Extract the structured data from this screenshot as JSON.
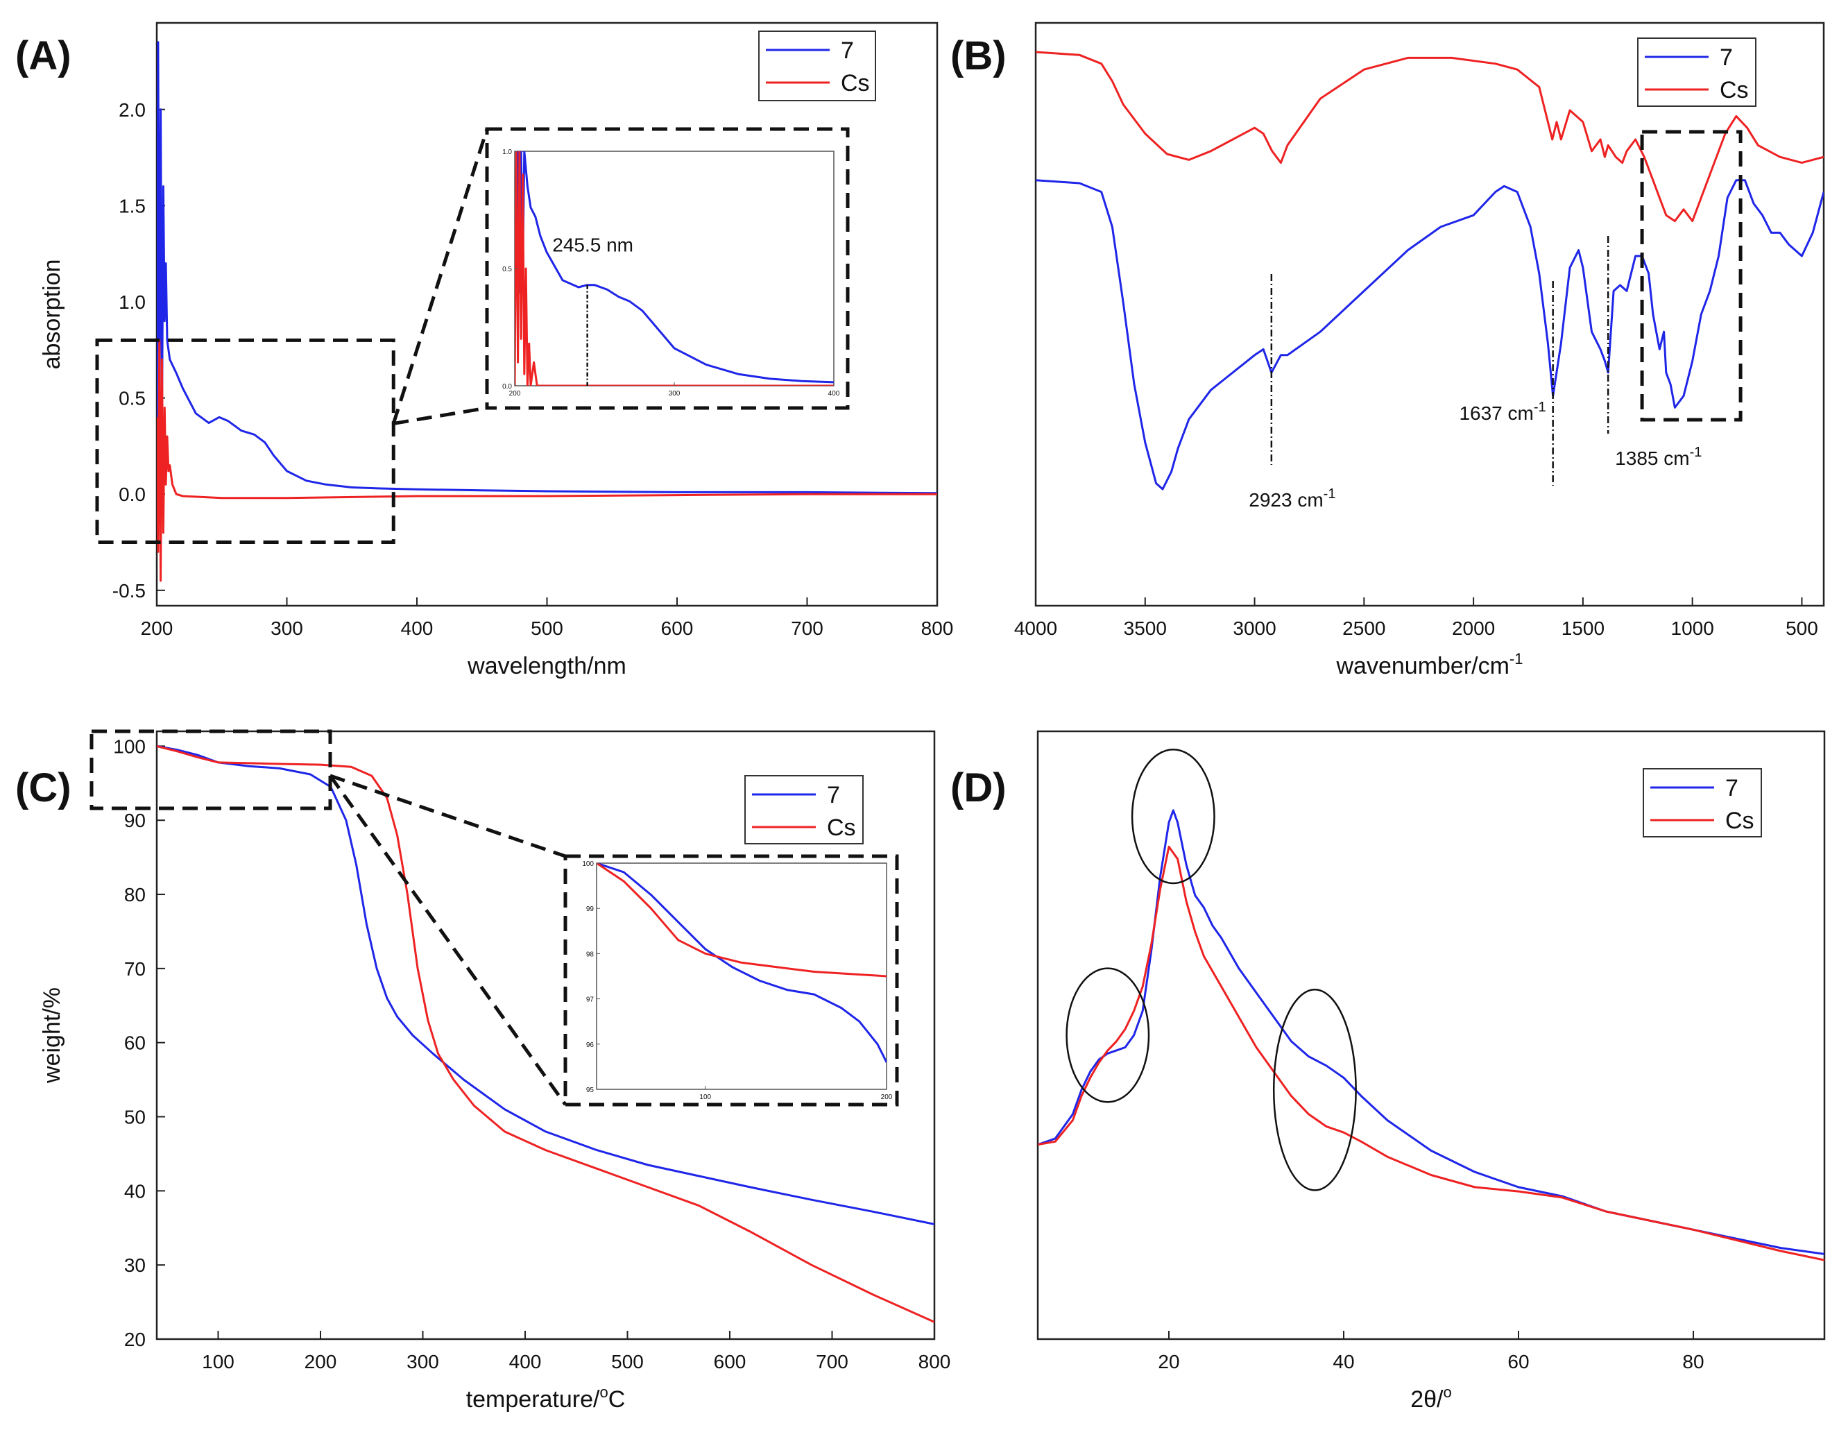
{
  "colors": {
    "blue": "#1f26e8",
    "red": "#ee2222"
  },
  "chart_data": [
    {
      "id": "A",
      "type": "line",
      "panel_label": "(A)",
      "xlabel": "wavelength/nm",
      "ylabel": "absorption",
      "xlim": [
        200,
        800
      ],
      "ylim": [
        -0.58,
        2.45
      ],
      "xticks": [
        200,
        300,
        400,
        500,
        600,
        700,
        800
      ],
      "xtick_labels": [
        "200",
        "300",
        "400",
        "500",
        "600",
        "700",
        "800"
      ],
      "yticks": [
        -0.5,
        0.0,
        0.5,
        1.0,
        1.5,
        2.0
      ],
      "ytick_labels": [
        "-0.5",
        "0.0",
        "0.5",
        "1.0",
        "1.5",
        "2.0"
      ],
      "legend": [
        "7",
        "Cs"
      ],
      "legend_position": "top-right",
      "series": [
        {
          "name": "7",
          "color": "blue",
          "x": [
            200,
            201,
            202,
            203,
            204,
            205,
            206,
            207,
            208,
            210,
            215,
            220,
            230,
            240,
            248,
            255,
            265,
            275,
            283,
            290,
            300,
            315,
            330,
            350,
            370,
            400,
            450,
            500,
            600,
            700,
            800
          ],
          "y": [
            0.2,
            2.35,
            0.6,
            2.0,
            0.4,
            1.6,
            0.9,
            1.2,
            0.8,
            0.7,
            0.63,
            0.55,
            0.42,
            0.37,
            0.4,
            0.38,
            0.33,
            0.31,
            0.27,
            0.2,
            0.12,
            0.07,
            0.05,
            0.035,
            0.03,
            0.025,
            0.02,
            0.015,
            0.01,
            0.01,
            0.005
          ]
        },
        {
          "name": "Cs",
          "color": "red",
          "x": [
            200,
            201,
            202,
            203,
            204,
            205,
            206,
            207,
            208,
            209,
            210,
            212,
            215,
            220,
            250,
            300,
            400,
            500,
            600,
            700,
            800
          ],
          "y": [
            0.4,
            -0.3,
            0.8,
            -0.45,
            0.7,
            -0.2,
            0.45,
            0.05,
            0.3,
            0.12,
            0.15,
            0.05,
            0.0,
            -0.01,
            -0.02,
            -0.02,
            -0.01,
            -0.01,
            -0.005,
            0.0,
            0.0
          ]
        }
      ],
      "zoom_box": {
        "x": [
          185,
          382
        ],
        "y": [
          -0.25,
          0.8
        ]
      },
      "inset": {
        "xlim": [
          200,
          400
        ],
        "ylim": [
          0,
          1.0
        ],
        "xtick_labels": [
          "200",
          "300",
          "400"
        ],
        "ytick_labels": [
          "0.0",
          "0.5",
          "1.0"
        ],
        "annotation": {
          "text": "245.5 nm",
          "x": 245.5
        },
        "series": [
          {
            "name": "7",
            "color": "blue",
            "x": [
              200,
              202,
              203,
              204,
              205,
              206,
              208,
              210,
              213,
              216,
              220,
              230,
              240,
              245.5,
              250,
              258,
              265,
              272,
              280,
              290,
              300,
              320,
              340,
              360,
              380,
              400
            ],
            "y": [
              0.3,
              1.0,
              0.4,
              1.0,
              0.5,
              1.0,
              0.85,
              0.76,
              0.72,
              0.64,
              0.57,
              0.45,
              0.42,
              0.43,
              0.43,
              0.41,
              0.38,
              0.36,
              0.32,
              0.24,
              0.16,
              0.09,
              0.05,
              0.03,
              0.02,
              0.015
            ]
          },
          {
            "name": "Cs",
            "color": "red",
            "x": [
              200,
              201,
              202,
              203,
              204,
              205,
              206,
              207,
              208,
              209,
              210,
              212,
              214,
              220,
              400
            ],
            "y": [
              0.0,
              1.0,
              0.1,
              1.0,
              0.2,
              0.9,
              0.05,
              0.5,
              0.0,
              0.18,
              0.0,
              0.1,
              0.0,
              0.0,
              0.0
            ]
          }
        ]
      }
    },
    {
      "id": "B",
      "type": "line",
      "panel_label": "(B)",
      "xlabel": "wavenumber/cm",
      "xlabel_sup": "-1",
      "ylabel": "",
      "xlim": [
        4000,
        400
      ],
      "ylim": [
        0,
        100
      ],
      "xticks": [
        4000,
        3500,
        3000,
        2500,
        2000,
        1500,
        1000,
        500
      ],
      "xtick_labels": [
        "4000",
        "3500",
        "3000",
        "2500",
        "2000",
        "1500",
        "1000",
        "500"
      ],
      "legend": [
        "7",
        "Cs"
      ],
      "legend_position": "top-right",
      "series": [
        {
          "name": "Cs",
          "color": "red",
          "x": [
            4000,
            3800,
            3700,
            3650,
            3600,
            3500,
            3400,
            3300,
            3200,
            3100,
            3000,
            2960,
            2920,
            2880,
            2850,
            2700,
            2500,
            2300,
            2100,
            1900,
            1800,
            1700,
            1660,
            1640,
            1620,
            1600,
            1560,
            1500,
            1460,
            1420,
            1400,
            1385,
            1350,
            1320,
            1300,
            1260,
            1220,
            1180,
            1150,
            1120,
            1080,
            1040,
            1000,
            960,
            900,
            850,
            800,
            750,
            700,
            600,
            500,
            400
          ],
          "y": [
            95,
            94.5,
            93,
            90,
            86,
            81,
            77.5,
            76.5,
            78,
            80,
            82,
            81,
            78,
            76,
            79,
            87,
            92,
            94,
            94,
            93,
            92,
            89,
            83,
            80,
            83,
            80,
            85,
            83,
            78,
            80,
            77,
            79,
            77,
            76,
            78,
            80,
            77,
            73,
            70,
            67,
            66,
            68,
            66,
            70,
            76,
            81,
            84,
            82,
            79,
            77,
            76,
            77
          ]
        },
        {
          "name": "7",
          "color": "blue",
          "x": [
            4000,
            3800,
            3700,
            3650,
            3600,
            3550,
            3500,
            3450,
            3420,
            3380,
            3350,
            3300,
            3200,
            3100,
            3000,
            2960,
            2923,
            2880,
            2850,
            2700,
            2500,
            2300,
            2150,
            2000,
            1900,
            1860,
            1800,
            1740,
            1700,
            1660,
            1637,
            1600,
            1560,
            1520,
            1500,
            1460,
            1420,
            1400,
            1385,
            1360,
            1330,
            1300,
            1260,
            1230,
            1200,
            1180,
            1150,
            1130,
            1120,
            1100,
            1080,
            1040,
            1000,
            960,
            920,
            880,
            840,
            800,
            760,
            720,
            680,
            640,
            600,
            560,
            500,
            450,
            400
          ],
          "y": [
            73,
            72.5,
            71,
            65,
            52,
            38,
            28,
            21,
            20,
            23,
            27,
            32,
            37,
            40,
            43,
            44,
            40,
            43,
            43,
            47,
            54,
            61,
            65,
            67,
            71,
            72,
            71,
            65,
            57,
            45,
            36,
            45,
            58,
            61,
            58,
            47,
            44,
            42,
            40,
            54,
            55,
            54,
            60,
            60,
            57,
            50,
            44,
            47,
            40,
            38,
            34,
            36,
            42,
            50,
            54,
            60,
            70,
            73,
            73,
            69,
            67,
            64,
            64,
            62,
            60,
            64,
            71
          ]
        }
      ],
      "annotations": [
        {
          "text": "2923 cm",
          "sup": "-1",
          "x": 2923
        },
        {
          "text": "1637 cm",
          "sup": "-1",
          "x": 1637
        },
        {
          "text": "1385 cm",
          "sup": "-1",
          "x": 1385
        }
      ],
      "highlight_box": {
        "x": [
          1230,
          780
        ],
        "y": [
          37,
          90
        ]
      }
    },
    {
      "id": "C",
      "type": "line",
      "panel_label": "(C)",
      "xlabel": "temperature/",
      "xlabel_degree": "o",
      "xlabel_unit": "C",
      "ylabel": "weight/%",
      "xlim": [
        40,
        800
      ],
      "ylim": [
        20,
        102
      ],
      "xticks": [
        100,
        200,
        300,
        400,
        500,
        600,
        700,
        800
      ],
      "xtick_labels": [
        "100",
        "200",
        "300",
        "400",
        "500",
        "600",
        "700",
        "800"
      ],
      "yticks": [
        20,
        30,
        40,
        50,
        60,
        70,
        80,
        90,
        100
      ],
      "ytick_labels": [
        "20",
        "30",
        "40",
        "50",
        "60",
        "70",
        "80",
        "90",
        "100"
      ],
      "legend": [
        "7",
        "Cs"
      ],
      "legend_position": "top-right",
      "series": [
        {
          "name": "7",
          "color": "blue",
          "x": [
            40,
            60,
            80,
            100,
            130,
            160,
            190,
            210,
            225,
            235,
            245,
            255,
            265,
            275,
            290,
            310,
            340,
            380,
            420,
            470,
            520,
            570,
            620,
            680,
            740,
            800
          ],
          "y": [
            100,
            99.5,
            98.8,
            97.8,
            97.3,
            97,
            96.2,
            94.5,
            90,
            84,
            76,
            70,
            66,
            63.5,
            61,
            58.5,
            55,
            51,
            48,
            45.5,
            43.5,
            42,
            40.5,
            38.8,
            37.2,
            35.5
          ]
        },
        {
          "name": "Cs",
          "color": "red",
          "x": [
            40,
            60,
            80,
            100,
            130,
            160,
            200,
            230,
            250,
            265,
            275,
            285,
            295,
            305,
            315,
            330,
            350,
            380,
            420,
            470,
            520,
            570,
            620,
            680,
            740,
            800
          ],
          "y": [
            100,
            99.3,
            98.5,
            97.8,
            97.7,
            97.6,
            97.5,
            97.2,
            96,
            93,
            88,
            80,
            70,
            63,
            58.5,
            55,
            51.5,
            48,
            45.5,
            43,
            40.5,
            38,
            34.5,
            30,
            26,
            22.3
          ]
        }
      ],
      "zoom_box": {
        "x": [
          42,
          215
        ],
        "y": [
          92.5,
          103
        ]
      },
      "inset": {
        "xlim": [
          40,
          200
        ],
        "ylim": [
          95,
          100
        ],
        "xtick_labels": [
          "100",
          "200"
        ],
        "ytick_labels": [
          "95",
          "96",
          "97",
          "98",
          "99",
          "100"
        ],
        "series": [
          {
            "name": "7",
            "color": "blue",
            "x": [
              40,
              55,
              70,
              85,
              100,
              115,
              130,
              145,
              160,
              175,
              185,
              195,
              200
            ],
            "y": [
              100,
              99.8,
              99.3,
              98.7,
              98.1,
              97.7,
              97.4,
              97.2,
              97.1,
              96.8,
              96.5,
              96.0,
              95.6
            ]
          },
          {
            "name": "Cs",
            "color": "red",
            "x": [
              40,
              55,
              70,
              85,
              100,
              120,
              140,
              160,
              180,
              200
            ],
            "y": [
              100,
              99.6,
              99.0,
              98.3,
              98.0,
              97.8,
              97.7,
              97.6,
              97.55,
              97.5
            ]
          }
        ]
      }
    },
    {
      "id": "D",
      "type": "line",
      "panel_label": "(D)",
      "xlabel": "2θ/",
      "xlabel_degree": "o",
      "ylabel": "",
      "xlim": [
        5,
        95
      ],
      "ylim": [
        0,
        100
      ],
      "xticks": [
        20,
        40,
        60,
        80
      ],
      "xtick_labels": [
        "20",
        "40",
        "60",
        "80"
      ],
      "legend": [
        "7",
        "Cs"
      ],
      "legend_position": "top-right",
      "series": [
        {
          "name": "7",
          "color": "blue",
          "x": [
            5,
            7,
            9,
            10,
            11,
            12,
            13,
            14,
            15,
            16,
            17,
            18,
            19,
            20,
            20.5,
            21,
            22,
            23,
            24,
            25,
            26,
            28,
            30,
            32,
            34,
            36,
            38,
            40,
            42,
            45,
            50,
            55,
            60,
            65,
            70,
            80,
            90,
            95
          ],
          "y": [
            32,
            33,
            37,
            41,
            44,
            46,
            47,
            47.5,
            48,
            50,
            54,
            64,
            76,
            85,
            87,
            85,
            78,
            73,
            71,
            68,
            66,
            61,
            57,
            53,
            49,
            46.5,
            45,
            43,
            40,
            36,
            31,
            27.5,
            25,
            23.5,
            21,
            18,
            15,
            14
          ]
        },
        {
          "name": "Cs",
          "color": "red",
          "x": [
            5,
            7,
            9,
            10,
            11,
            12,
            13,
            14,
            15,
            16,
            17,
            18,
            19,
            20,
            21,
            22,
            23,
            24,
            26,
            28,
            30,
            32,
            34,
            36,
            38,
            40,
            42,
            45,
            50,
            55,
            60,
            65,
            70,
            80,
            90,
            95
          ],
          "y": [
            32,
            32.5,
            36,
            40,
            43,
            45.5,
            47.5,
            49,
            51,
            54,
            58,
            65,
            74,
            81,
            79,
            72,
            67,
            63,
            58,
            53,
            48,
            44,
            40,
            37,
            35,
            34,
            32.5,
            30,
            27,
            25,
            24.3,
            23.3,
            21,
            18,
            14.5,
            13
          ]
        }
      ],
      "circles": [
        {
          "cx": 13,
          "cy": 50,
          "rx": 4.7,
          "ry": 11
        },
        {
          "cx": 20.5,
          "cy": 86,
          "rx": 4.7,
          "ry": 11
        },
        {
          "cx": 36.7,
          "cy": 41,
          "rx": 4.7,
          "ry": 16.5
        }
      ]
    }
  ]
}
